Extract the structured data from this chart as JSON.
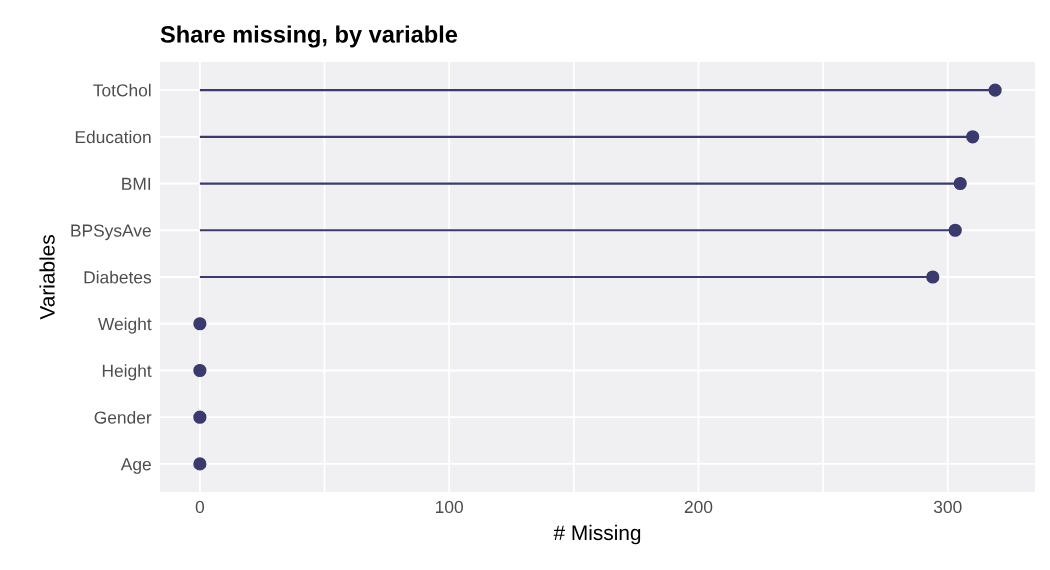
{
  "chart_data": {
    "type": "lollipop",
    "title": "Share missing, by variable",
    "xlabel": "# Missing",
    "ylabel": "Variables",
    "orientation": "horizontal",
    "categories": [
      "TotChol",
      "Education",
      "BMI",
      "BPSysAve",
      "Diabetes",
      "Weight",
      "Height",
      "Gender",
      "Age"
    ],
    "values": [
      319,
      310,
      305,
      303,
      294,
      0,
      0,
      0,
      0
    ],
    "color": "#3a3a6e",
    "xlim": [
      -16,
      335
    ],
    "xticks": [
      0,
      {
        "value": 50,
        "label": null
      },
      100,
      {
        "value": 150,
        "label": null
      },
      200,
      {
        "value": 250,
        "label": null
      },
      300
    ],
    "grid": true,
    "marker": "circle"
  }
}
